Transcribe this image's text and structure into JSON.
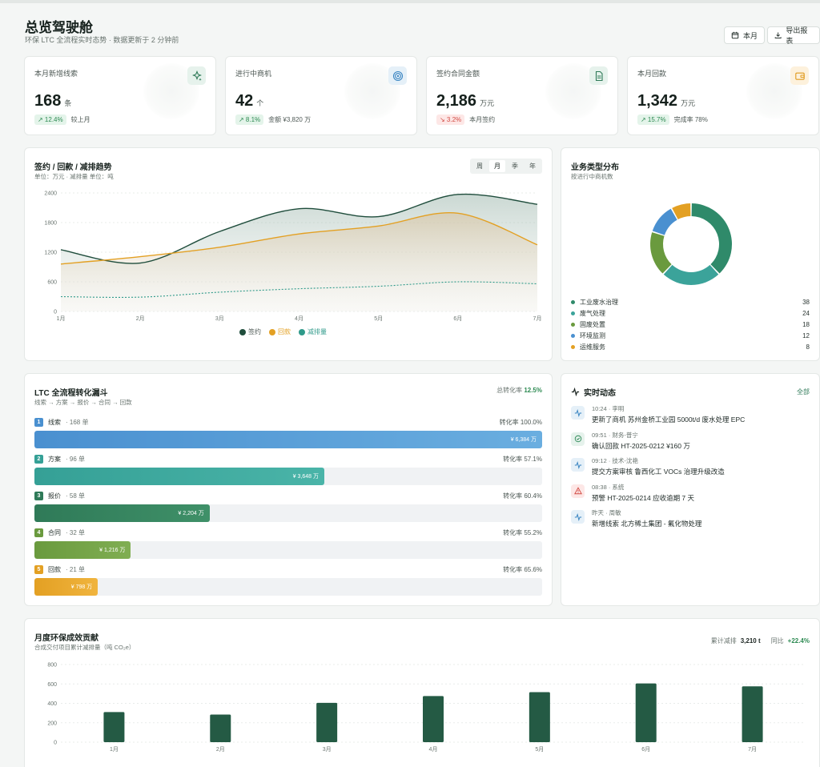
{
  "header": {
    "title": "总览驾驶舱",
    "subtitle": "环保 LTC 全流程实时态势 · 数据更新于 2 分钟前",
    "period_btn": "本月",
    "export_btn": "导出报表"
  },
  "kpis": [
    {
      "label": "本月新增线索",
      "value": "168",
      "unit": "条",
      "delta": "↗ 12.4%",
      "delta_dir": "up",
      "note": "较上月",
      "icon": "sparkle-icon",
      "icon_bg": "#e6f2ec",
      "icon_color": "#2f7a58"
    },
    {
      "label": "进行中商机",
      "value": "42",
      "unit": "个",
      "delta": "↗ 8.1%",
      "delta_dir": "up",
      "note": "金额 ¥3,820 万",
      "icon": "target-icon",
      "icon_bg": "#e5f0f8",
      "icon_color": "#3a85c2"
    },
    {
      "label": "签约合同金额",
      "value": "2,186",
      "unit": "万元",
      "delta": "↘ 3.2%",
      "delta_dir": "down",
      "note": "本月签约",
      "icon": "document-icon",
      "icon_bg": "#e6f2ec",
      "icon_color": "#2f7a58"
    },
    {
      "label": "本月回款",
      "value": "1,342",
      "unit": "万元",
      "delta": "↗ 15.7%",
      "delta_dir": "up",
      "note": "完成率 78%",
      "icon": "wallet-icon",
      "icon_bg": "#fdf1dc",
      "icon_color": "#e09a1c"
    }
  ],
  "trend": {
    "title": "签约 / 回款 / 减排趋势",
    "subtitle": "单位：万元 · 减排量 单位：吨",
    "periods": [
      "周",
      "月",
      "季",
      "年"
    ],
    "active_period": "月"
  },
  "biz": {
    "title": "业务类型分布",
    "subtitle": "按进行中商机数",
    "items": [
      {
        "name": "工业废水治理",
        "value": 38,
        "color": "#2f8a6a"
      },
      {
        "name": "废气处理",
        "value": 24,
        "color": "#3ba39a"
      },
      {
        "name": "固废处置",
        "value": 18,
        "color": "#6a9a3e"
      },
      {
        "name": "环境监测",
        "value": 12,
        "color": "#4a90d0"
      },
      {
        "name": "运维服务",
        "value": 8,
        "color": "#e3a023"
      }
    ]
  },
  "funnel": {
    "title": "LTC 全流程转化漏斗",
    "subtitle": "线索 → 方案 → 报价 → 合同 → 回款",
    "total_label": "总转化率",
    "total_value": "12.5%",
    "stages": [
      {
        "num": "1",
        "name": "线索",
        "count": "· 168 单",
        "rate": "转化率 100.0%",
        "amount": "¥ 6,384 万",
        "fill": 1.0,
        "color": "#4a90d0",
        "color2": "#6aaee0"
      },
      {
        "num": "2",
        "name": "方案",
        "count": "· 96 单",
        "rate": "转化率 57.1%",
        "amount": "¥ 3,648 万",
        "fill": 0.571,
        "color": "#35a096",
        "color2": "#4ab4a8"
      },
      {
        "num": "3",
        "name": "报价",
        "count": "· 58 单",
        "rate": "转化率 60.4%",
        "amount": "¥ 2,204 万",
        "fill": 0.345,
        "color": "#2f7a58",
        "color2": "#3f9068"
      },
      {
        "num": "4",
        "name": "合同",
        "count": "· 32 单",
        "rate": "转化率 55.2%",
        "amount": "¥ 1,216 万",
        "fill": 0.19,
        "color": "#6a9a3e",
        "color2": "#80ae52"
      },
      {
        "num": "5",
        "name": "回款",
        "count": "· 21 单",
        "rate": "转化率 65.6%",
        "amount": "¥ 798 万",
        "fill": 0.125,
        "color": "#e3a023",
        "color2": "#f0b43e"
      }
    ]
  },
  "activity": {
    "title": "实时动态",
    "all_link": "全部",
    "items": [
      {
        "meta": "10:24 · 李明",
        "text": "更新了商机 苏州金桥工业园 5000t/d 废水处理 EPC",
        "icon": "pulse-icon",
        "bg": "#e5f0f8",
        "color": "#3a85c2"
      },
      {
        "meta": "09:51 · 财务-普宁",
        "text": "确认回款 HT-2025-0212 ¥160 万",
        "icon": "check-circle-icon",
        "bg": "#e6f2ec",
        "color": "#2f8a58"
      },
      {
        "meta": "09:12 · 技术-沈艳",
        "text": "提交方案审核 鲁西化工 VOCs 治理升级改造",
        "icon": "pulse-icon",
        "bg": "#e5f0f8",
        "color": "#3a85c2"
      },
      {
        "meta": "08:38 · 系统",
        "text": "预警 HT-2025-0214 应收逾期 7 天",
        "icon": "warning-icon",
        "bg": "#fde7e6",
        "color": "#d24a43"
      },
      {
        "meta": "昨天 · 周敏",
        "text": "新增线索 北方稀土集团 - 氟化物处理",
        "icon": "pulse-icon",
        "bg": "#e5f0f8",
        "color": "#3a85c2"
      }
    ]
  },
  "env": {
    "title": "月度环保成效贡献",
    "subtitle": "合成交付项目累计减排量（吨 CO₂e）",
    "total_label": "累计减排",
    "total_value": "3,210 t",
    "yoy_label": "同比",
    "yoy_value": "+22.4%"
  },
  "chart_data": [
    {
      "type": "area",
      "categories": [
        "1月",
        "2月",
        "3月",
        "4月",
        "5月",
        "6月",
        "7月"
      ],
      "ylim": [
        0,
        2400
      ],
      "yticks": [
        0,
        600,
        1200,
        1800,
        2400
      ],
      "series": [
        {
          "name": "签约",
          "values": [
            1250,
            980,
            1620,
            2080,
            1920,
            2370,
            2170
          ],
          "color": "#1f4d3c"
        },
        {
          "name": "回款",
          "values": [
            960,
            1110,
            1300,
            1570,
            1730,
            1990,
            1350
          ],
          "color": "#e3a023"
        },
        {
          "name": "减排量",
          "values": [
            300,
            290,
            390,
            460,
            510,
            600,
            560
          ],
          "color": "#2f9a8a"
        }
      ]
    },
    {
      "type": "bar",
      "categories": [
        "1月",
        "2月",
        "3月",
        "4月",
        "5月",
        "6月",
        "7月"
      ],
      "values": [
        310,
        285,
        405,
        475,
        515,
        605,
        575
      ],
      "ylim": [
        0,
        800
      ],
      "yticks": [
        0,
        200,
        400,
        600,
        800
      ],
      "color": "#245a44"
    }
  ]
}
